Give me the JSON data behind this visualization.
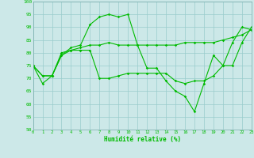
{
  "xlabel": "Humidité relative (%)",
  "ylim": [
    50,
    100
  ],
  "xlim": [
    0,
    23
  ],
  "yticks": [
    50,
    55,
    60,
    65,
    70,
    75,
    80,
    85,
    90,
    95,
    100
  ],
  "xticks": [
    0,
    1,
    2,
    3,
    4,
    5,
    6,
    7,
    8,
    9,
    10,
    11,
    12,
    13,
    14,
    15,
    16,
    17,
    18,
    19,
    20,
    21,
    22,
    23
  ],
  "bg_color": "#cce8e8",
  "grid_color": "#99cccc",
  "line_color": "#00bb00",
  "line1_x": [
    0,
    1,
    2,
    3,
    4,
    5,
    6,
    7,
    8,
    9,
    10,
    11,
    12,
    13,
    14,
    15,
    16,
    17,
    18,
    19,
    20,
    21,
    22,
    23
  ],
  "line1_y": [
    75,
    68,
    71,
    79,
    82,
    83,
    91,
    94,
    95,
    94,
    95,
    83,
    74,
    74,
    69,
    65,
    63,
    57,
    68,
    79,
    75,
    84,
    90,
    89
  ],
  "line2_x": [
    0,
    1,
    2,
    3,
    4,
    5,
    6,
    7,
    8,
    9,
    10,
    11,
    12,
    13,
    14,
    15,
    16,
    17,
    18,
    19,
    20,
    21,
    22,
    23
  ],
  "line2_y": [
    75,
    71,
    71,
    79,
    81,
    81,
    81,
    70,
    70,
    71,
    72,
    72,
    72,
    72,
    72,
    69,
    68,
    69,
    69,
    71,
    75,
    75,
    84,
    90
  ],
  "line3_x": [
    0,
    1,
    2,
    3,
    4,
    5,
    6,
    7,
    8,
    9,
    10,
    11,
    12,
    13,
    14,
    15,
    16,
    17,
    18,
    19,
    20,
    21,
    22,
    23
  ],
  "line3_y": [
    75,
    71,
    71,
    80,
    81,
    82,
    83,
    83,
    84,
    83,
    83,
    83,
    83,
    83,
    83,
    83,
    84,
    84,
    84,
    84,
    85,
    86,
    87,
    89
  ]
}
